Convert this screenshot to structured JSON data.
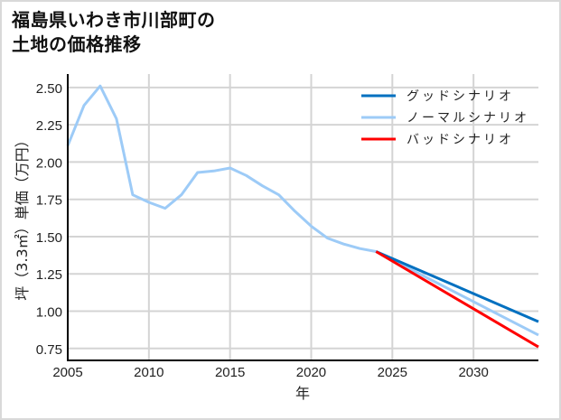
{
  "title": {
    "line1": "福島県いわき市川部町の",
    "line2": "土地の価格推移"
  },
  "chart_data": {
    "type": "line",
    "title": "福島県いわき市川部町の土地の価格推移",
    "xlabel": "年",
    "ylabel": "坪（3.3㎡）単価（万円）",
    "xlim": [
      2005,
      2034
    ],
    "ylim": [
      0.67,
      2.59
    ],
    "grid": true,
    "legend_position": "upper right",
    "x_ticks": [
      2005,
      2010,
      2015,
      2020,
      2025,
      2030
    ],
    "x_tick_labels": [
      "2005",
      "2010",
      "2015",
      "2020",
      "2025",
      "2030"
    ],
    "y_ticks": [
      0.75,
      1.0,
      1.25,
      1.5,
      1.75,
      2.0,
      2.25,
      2.5
    ],
    "y_tick_labels": [
      "0.75",
      "1.00",
      "1.25",
      "1.50",
      "1.75",
      "2.00",
      "2.25",
      "2.50"
    ],
    "series": [
      {
        "name": "グッドシナリオ",
        "color": "#0070c0",
        "x": [
          2024,
          2034
        ],
        "values": [
          1.4,
          0.93
        ]
      },
      {
        "name": "ノーマルシナリオ",
        "color": "#9dcbf7",
        "x": [
          2005,
          2006,
          2007,
          2008,
          2009,
          2010,
          2011,
          2012,
          2013,
          2014,
          2015,
          2016,
          2017,
          2018,
          2019,
          2020,
          2021,
          2022,
          2023,
          2024,
          2034
        ],
        "values": [
          2.11,
          2.38,
          2.51,
          2.29,
          1.78,
          1.73,
          1.69,
          1.78,
          1.93,
          1.94,
          1.96,
          1.91,
          1.84,
          1.78,
          1.67,
          1.57,
          1.49,
          1.45,
          1.42,
          1.4,
          0.84
        ]
      },
      {
        "name": "バッドシナリオ",
        "color": "#ff0000",
        "x": [
          2024,
          2034
        ],
        "values": [
          1.4,
          0.76
        ]
      }
    ]
  },
  "legend": {
    "items": [
      {
        "label": "グッドシナリオ",
        "color": "#0070c0"
      },
      {
        "label": "ノーマルシナリオ",
        "color": "#9dcbf7"
      },
      {
        "label": "バッドシナリオ",
        "color": "#ff0000"
      }
    ]
  },
  "axes": {
    "xlabel": "年",
    "ylabel": "坪（3.3㎡）単価（万円）"
  }
}
